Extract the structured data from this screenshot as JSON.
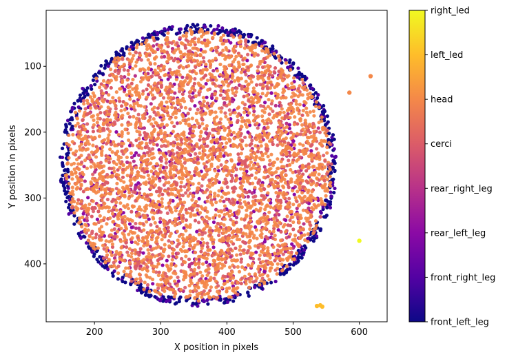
{
  "chart_data": {
    "type": "scatter",
    "xlabel": "X position in pixels",
    "ylabel": "Y position in pixels",
    "xlim": [
      127,
      642
    ],
    "ylim": [
      488,
      15
    ],
    "y_inverted": true,
    "xticks": [
      200,
      300,
      400,
      500,
      600
    ],
    "yticks": [
      100,
      200,
      300,
      400
    ],
    "grid": false,
    "colormap": "plasma",
    "colorbar": {
      "labels": [
        "front_left_leg",
        "front_right_leg",
        "rear_left_leg",
        "rear_right_leg",
        "cerci",
        "head",
        "left_led",
        "right_led"
      ],
      "colors": [
        "#0d0887",
        "#5302a3",
        "#8b0aa5",
        "#b83289",
        "#db5c68",
        "#f48849",
        "#febd2a",
        "#f0f921"
      ]
    },
    "clusters": [
      {
        "series": "bodypart",
        "description_shape": "disk",
        "center": [
          357,
          250
        ],
        "radius_x": 205,
        "radius_y": 210
      },
      {
        "series": "left_led",
        "points": [
          [
            536,
            464
          ],
          [
            541,
            463
          ],
          [
            544,
            465
          ]
        ]
      },
      {
        "series": "right_led",
        "points": [
          [
            600,
            365
          ]
        ]
      },
      {
        "series": "head",
        "points": [
          [
            617,
            115
          ],
          [
            585,
            140
          ]
        ]
      }
    ]
  }
}
